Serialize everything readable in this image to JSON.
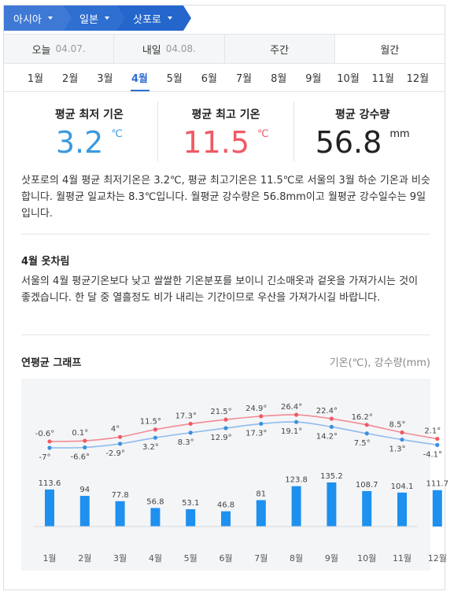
{
  "breadcrumb": [
    {
      "label": "아시아"
    },
    {
      "label": "일본"
    },
    {
      "label": "삿포로"
    }
  ],
  "period_tabs": [
    {
      "label": "오늘",
      "date": "04.07."
    },
    {
      "label": "내일",
      "date": "04.08."
    },
    {
      "label": "주간",
      "date": ""
    },
    {
      "label": "월간",
      "date": ""
    }
  ],
  "month_tabs": [
    "1월",
    "2월",
    "3월",
    "4월",
    "5월",
    "6월",
    "7월",
    "8월",
    "9월",
    "10월",
    "11월",
    "12월"
  ],
  "active_month": "4월",
  "stats": {
    "min": {
      "label": "평균 최저 기온",
      "value": "3.2",
      "unit": "℃"
    },
    "max": {
      "label": "평균 최고 기온",
      "value": "11.5",
      "unit": "℃"
    },
    "rain": {
      "label": "평균 강수량",
      "value": "56.8",
      "unit": "mm"
    }
  },
  "summary": "삿포로의 4월 평균 최저기온은 3.2℃, 평균 최고기온은 11.5℃로 서울의 3월 하순 기온과 비슷합니다. 월평균 일교차는 8.3℃입니다. 월평균 강수량은 56.8mm이고 월평균 강수일수는 9일입니다.",
  "outfit": {
    "title": "4월 옷차림",
    "text": "서울의 4월 평균기온보다 낮고 쌀쌀한 기온분포를 보이니 긴소매옷과 겉옷을 가져가시는 것이 좋겠습니다. 한 달 중 열흘정도 비가 내리는 기간이므로 우산을 가져가시길 바랍니다."
  },
  "graph": {
    "title": "연평균 그래프",
    "legend": "기온(℃), 강수량(mm)"
  },
  "colors": {
    "max_line": "#f28b96",
    "max_point": "#ef5a64",
    "min_line": "#8fbbee",
    "min_point": "#3b8fe0",
    "bar": "#1e90ef"
  },
  "chart_data": {
    "type": "bar",
    "categories": [
      "1월",
      "2월",
      "3월",
      "4월",
      "5월",
      "6월",
      "7월",
      "8월",
      "9월",
      "10월",
      "11월",
      "12월"
    ],
    "series": [
      {
        "values": [
          -0.6,
          0.1,
          4,
          11.5,
          17.3,
          21.5,
          24.9,
          26.4,
          22.4,
          16.2,
          8.5,
          2.1
        ],
        "labels": [
          "-0.6°",
          "0.1°",
          "4°",
          "11.5°",
          "17.3°",
          "21.5°",
          "24.9°",
          "26.4°",
          "22.4°",
          "16.2°",
          "8.5°",
          "2.1°"
        ]
      },
      {
        "values": [
          -7,
          -6.6,
          -2.9,
          3.2,
          8.3,
          12.9,
          17.3,
          19.1,
          14.2,
          7.5,
          1.3,
          -4.1
        ],
        "labels": [
          "-7°",
          "-6.6°",
          "-2.9°",
          "3.2°",
          "8.3°",
          "12.9°",
          "17.3°",
          "19.1°",
          "14.2°",
          "7.5°",
          "1.3°",
          "-4.1°"
        ]
      },
      {
        "values": [
          113.6,
          94,
          77.8,
          56.8,
          53.1,
          46.8,
          81,
          123.8,
          135.2,
          108.7,
          104.1,
          111.7
        ],
        "labels": [
          "113.6",
          "94",
          "77.8",
          "56.8",
          "53.1",
          "46.8",
          "81",
          "123.8",
          "135.2",
          "108.7",
          "104.1",
          "111.7"
        ]
      }
    ]
  }
}
